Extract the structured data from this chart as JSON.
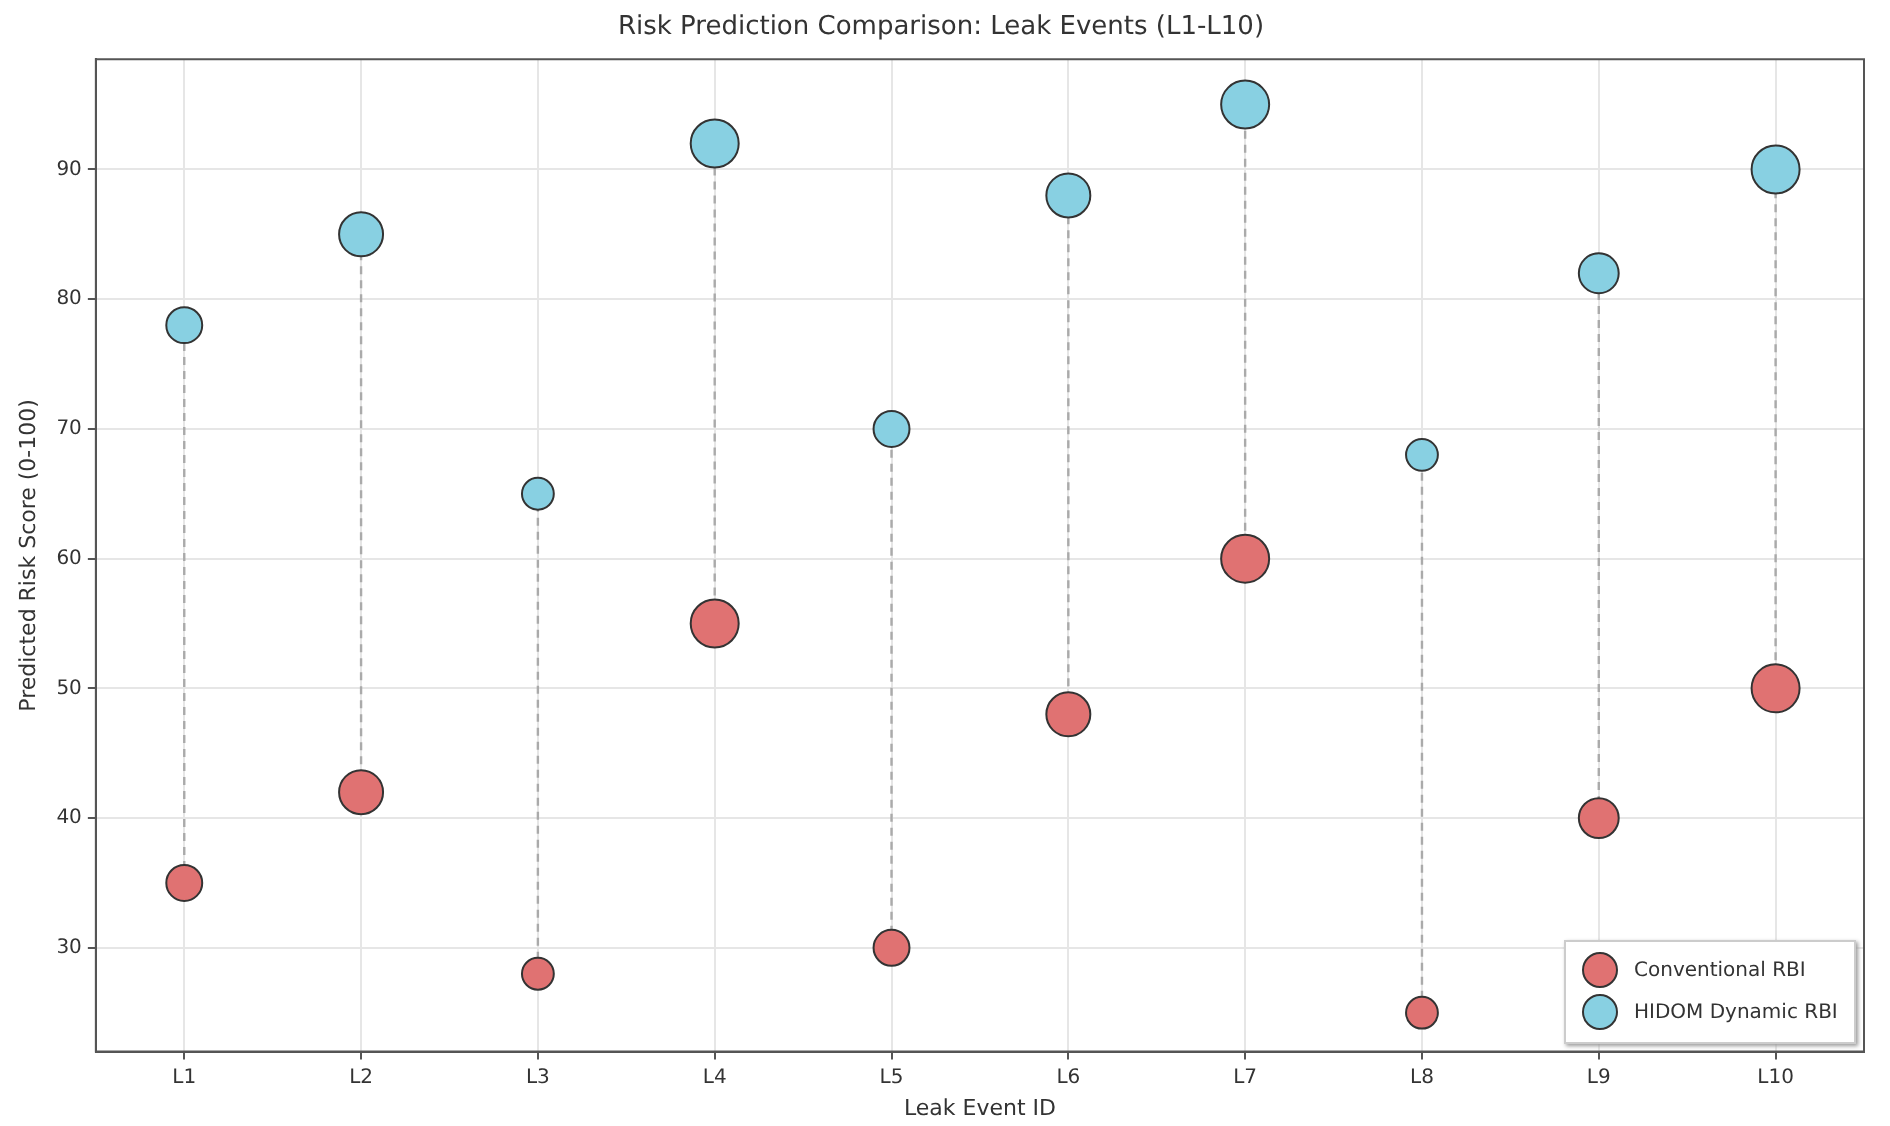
{
  "chart_data": {
    "type": "bubble",
    "title": "Risk Prediction Comparison: Leak Events (L1-L10)",
    "xlabel": "Leak Event ID",
    "ylabel": "Predicted Risk Score (0-100)",
    "categories": [
      "L1",
      "L2",
      "L3",
      "L4",
      "L5",
      "L6",
      "L7",
      "L8",
      "L9",
      "L10"
    ],
    "series": [
      {
        "name": "Conventional RBI",
        "color": "#e07272",
        "values": [
          35,
          42,
          28,
          55,
          30,
          48,
          60,
          25,
          40,
          50
        ],
        "sizes": [
          0.56,
          0.84,
          0.44,
          1,
          0.56,
          0.84,
          1,
          0.44,
          0.69,
          1
        ]
      },
      {
        "name": "HIDOM Dynamic RBI",
        "color": "#88d0e2",
        "values": [
          78,
          85,
          65,
          92,
          70,
          88,
          95,
          68,
          82,
          90
        ],
        "sizes": [
          0.56,
          0.84,
          0.44,
          1,
          0.56,
          0.84,
          1,
          0.44,
          0.69,
          1
        ]
      }
    ],
    "ylim": [
      22,
      98.5
    ],
    "yticks": [
      30,
      40,
      50,
      60,
      70,
      80,
      90
    ],
    "grid": true,
    "legend": "bottom right",
    "marker": "circle"
  }
}
